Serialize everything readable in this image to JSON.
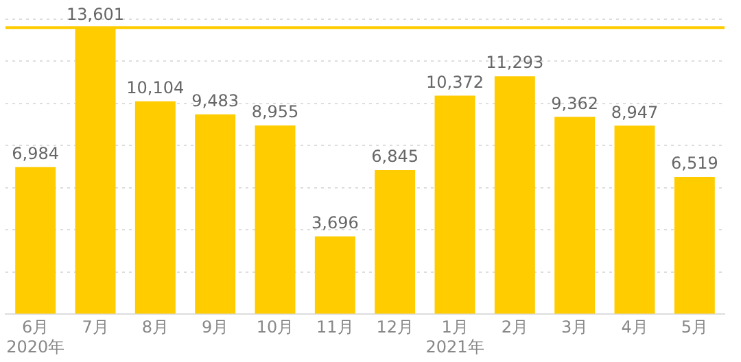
{
  "chart_data": {
    "type": "bar",
    "categories": [
      "6月\n2020年",
      "7月",
      "8月",
      "9月",
      "10月",
      "11月",
      "12月",
      "1月\n2021年",
      "2月",
      "3月",
      "4月",
      "5月"
    ],
    "values": [
      6984,
      13601,
      10104,
      9483,
      8955,
      3696,
      6845,
      10372,
      11293,
      9362,
      8947,
      6519
    ],
    "value_labels": [
      "6,984",
      "13,601",
      "10,104",
      "9,483",
      "8,955",
      "3,696",
      "6,845",
      "10,372",
      "11,293",
      "9,362",
      "8,947",
      "6,519"
    ],
    "color": "#ffcc00",
    "tick_labels": "x",
    "grid": "y",
    "ref_lines": [
      {
        "axis": "y",
        "value": 13601,
        "color": "#ffcc00"
      }
    ]
  }
}
